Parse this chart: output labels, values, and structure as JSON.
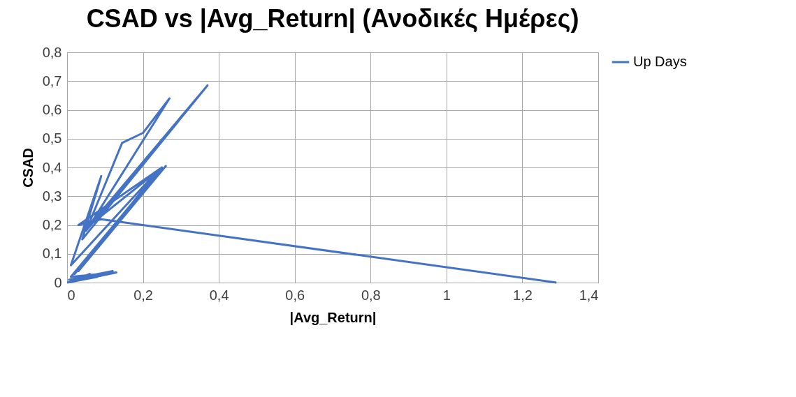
{
  "chart_data": {
    "type": "line",
    "title": "CSAD vs |Avg_Return| (Ανοδικές Ημέρες)",
    "xlabel": "|Avg_Return|",
    "ylabel": "CSAD",
    "x": [
      0.0,
      0.08,
      0.01,
      0.06,
      0.02,
      0.005,
      0.12,
      0.02,
      0.13,
      0.01,
      0.25,
      0.02,
      0.26,
      0.03,
      0.24,
      0.01,
      0.09,
      0.04,
      0.37,
      0.05,
      0.145,
      0.2,
      0.27,
      0.06,
      0.37,
      0.07,
      0.25,
      0.03,
      0.09,
      1.29
    ],
    "series": [
      {
        "name": "Up Days",
        "color": "#4472c4",
        "values": [
          0.0,
          0.02,
          0.005,
          0.03,
          0.01,
          0.01,
          0.04,
          0.005,
          0.035,
          0.02,
          0.4,
          0.03,
          0.405,
          0.04,
          0.39,
          0.06,
          0.37,
          0.15,
          0.685,
          0.18,
          0.485,
          0.52,
          0.64,
          0.2,
          0.685,
          0.21,
          0.4,
          0.2,
          0.22,
          0.0
        ]
      }
    ],
    "xlim": [
      0,
      1.4
    ],
    "ylim": [
      0,
      0.8
    ],
    "xticks": [
      0,
      {
        "value": 0.2,
        "label": "0,2"
      },
      {
        "value": 0.4,
        "label": "0,4"
      },
      {
        "value": 0.6,
        "label": "0,6"
      },
      {
        "value": 0.8,
        "label": "0,8"
      },
      1,
      {
        "value": 1.2,
        "label": "1,2"
      },
      {
        "value": 1.4,
        "label": "1,4"
      }
    ],
    "yticks": [
      0,
      {
        "value": 0.1,
        "label": "0,1"
      },
      {
        "value": 0.2,
        "label": "0,2"
      },
      {
        "value": 0.3,
        "label": "0,3"
      },
      {
        "value": 0.4,
        "label": "0,4"
      },
      {
        "value": 0.5,
        "label": "0,5"
      },
      {
        "value": 0.6,
        "label": "0,6"
      },
      {
        "value": 0.7,
        "label": "0,7"
      },
      {
        "value": 0.8,
        "label": "0,8"
      }
    ],
    "grid": true,
    "legend": "right",
    "marker": "none",
    "line_style": "solid"
  }
}
